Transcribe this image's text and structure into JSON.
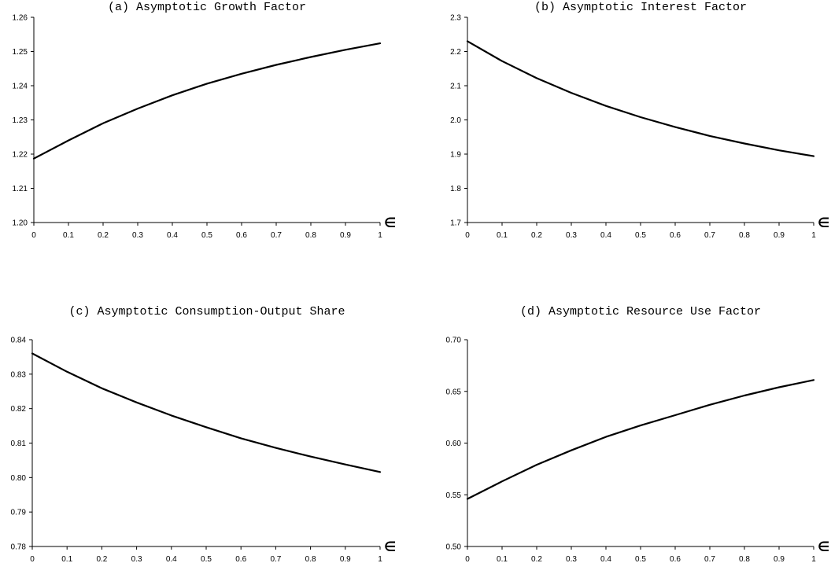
{
  "chart_data": [
    {
      "type": "line",
      "title": "(a)  Asymptotic Growth Factor",
      "xlabel": "∈",
      "ylabel": "",
      "xlim": [
        0,
        1
      ],
      "ylim": [
        1.2,
        1.26
      ],
      "x_ticks": [
        "0",
        "0.1",
        "0.2",
        "0.3",
        "0.4",
        "0.5",
        "0.6",
        "0.7",
        "0.8",
        "0.9",
        "1"
      ],
      "y_ticks": [
        "1.20",
        "1.21",
        "1.22",
        "1.23",
        "1.24",
        "1.25",
        "1.26"
      ],
      "series": [
        {
          "x": [
            0,
            0.1,
            0.2,
            0.3,
            0.4,
            0.5,
            0.6,
            0.7,
            0.8,
            0.9,
            1.0
          ],
          "values": [
            1.2187,
            1.224,
            1.229,
            1.2333,
            1.2372,
            1.2406,
            1.2435,
            1.2461,
            1.2484,
            1.2505,
            1.2524
          ]
        }
      ]
    },
    {
      "type": "line",
      "title": "(b)  Asymptotic Interest Factor",
      "xlabel": "∈",
      "ylabel": "",
      "xlim": [
        0,
        1
      ],
      "ylim": [
        1.7,
        2.3
      ],
      "x_ticks": [
        "0",
        "0.1",
        "0.2",
        "0.3",
        "0.4",
        "0.5",
        "0.6",
        "0.7",
        "0.8",
        "0.9",
        "1"
      ],
      "y_ticks": [
        "1.7",
        "1.8",
        "1.9",
        "2.0",
        "2.1",
        "2.2",
        "2.3"
      ],
      "series": [
        {
          "x": [
            0,
            0.1,
            0.2,
            0.3,
            0.4,
            0.5,
            0.6,
            0.7,
            0.8,
            0.9,
            1.0
          ],
          "values": [
            2.23,
            2.172,
            2.122,
            2.079,
            2.041,
            2.008,
            1.979,
            1.953,
            1.931,
            1.911,
            1.894
          ]
        }
      ]
    },
    {
      "type": "line",
      "title": "(c)  Asymptotic Consumption-Output Share",
      "xlabel": "∈",
      "ylabel": "",
      "xlim": [
        0,
        1
      ],
      "ylim": [
        0.78,
        0.84
      ],
      "x_ticks": [
        "0",
        "0.1",
        "0.2",
        "0.3",
        "0.4",
        "0.5",
        "0.6",
        "0.7",
        "0.8",
        "0.9",
        "1"
      ],
      "y_ticks": [
        "0.78",
        "0.79",
        "0.80",
        "0.81",
        "0.82",
        "0.83",
        "0.84"
      ],
      "series": [
        {
          "x": [
            0,
            0.1,
            0.2,
            0.3,
            0.4,
            0.5,
            0.6,
            0.7,
            0.8,
            0.9,
            1.0
          ],
          "values": [
            0.836,
            0.8307,
            0.8259,
            0.8218,
            0.818,
            0.8146,
            0.8114,
            0.8086,
            0.8061,
            0.8038,
            0.8016
          ]
        }
      ]
    },
    {
      "type": "line",
      "title": "(d)  Asymptotic Resource Use Factor",
      "xlabel": "∈",
      "ylabel": "",
      "xlim": [
        0,
        1
      ],
      "ylim": [
        0.5,
        0.7
      ],
      "x_ticks": [
        "0",
        "0.1",
        "0.2",
        "0.3",
        "0.4",
        "0.5",
        "0.6",
        "0.7",
        "0.8",
        "0.9",
        "1"
      ],
      "y_ticks": [
        "0.50",
        "0.55",
        "0.60",
        "0.65",
        "0.70"
      ],
      "series": [
        {
          "x": [
            0,
            0.1,
            0.2,
            0.3,
            0.4,
            0.5,
            0.6,
            0.7,
            0.8,
            0.9,
            1.0
          ],
          "values": [
            0.546,
            0.563,
            0.579,
            0.593,
            0.606,
            0.617,
            0.627,
            0.637,
            0.646,
            0.654,
            0.661
          ]
        }
      ]
    }
  ]
}
